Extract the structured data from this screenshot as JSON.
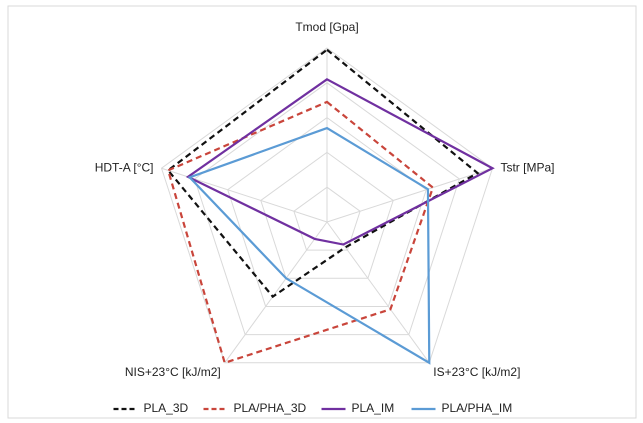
{
  "chart_data": {
    "type": "radar",
    "categories": [
      "Tmod [Gpa]",
      "Tstr [MPa]",
      "IS+23°C [kJ/m2]",
      "NIS+23°C [kJ/m2]",
      "HDT-A [°C]"
    ],
    "rlim": [
      0,
      5
    ],
    "rticks": [
      1,
      2,
      3,
      4,
      5
    ],
    "grid": true,
    "legend": "bottom",
    "series": [
      {
        "name": "PLA_3D",
        "color": "#111111",
        "dash": true,
        "values": [
          4.95,
          4.55,
          0.9,
          2.65,
          4.8
        ]
      },
      {
        "name": "PLA/PHA_3D",
        "color": "#c9453b",
        "dash": true,
        "values": [
          3.45,
          3.2,
          3.1,
          5.0,
          4.8
        ]
      },
      {
        "name": "PLA_IM",
        "color": "#7030a0",
        "dash": false,
        "values": [
          4.1,
          5.0,
          0.8,
          0.6,
          4.2
        ]
      },
      {
        "name": "PLA/PHA_IM",
        "color": "#5b9bd5",
        "dash": false,
        "values": [
          2.7,
          3.05,
          5.0,
          2.0,
          4.15
        ]
      }
    ]
  }
}
